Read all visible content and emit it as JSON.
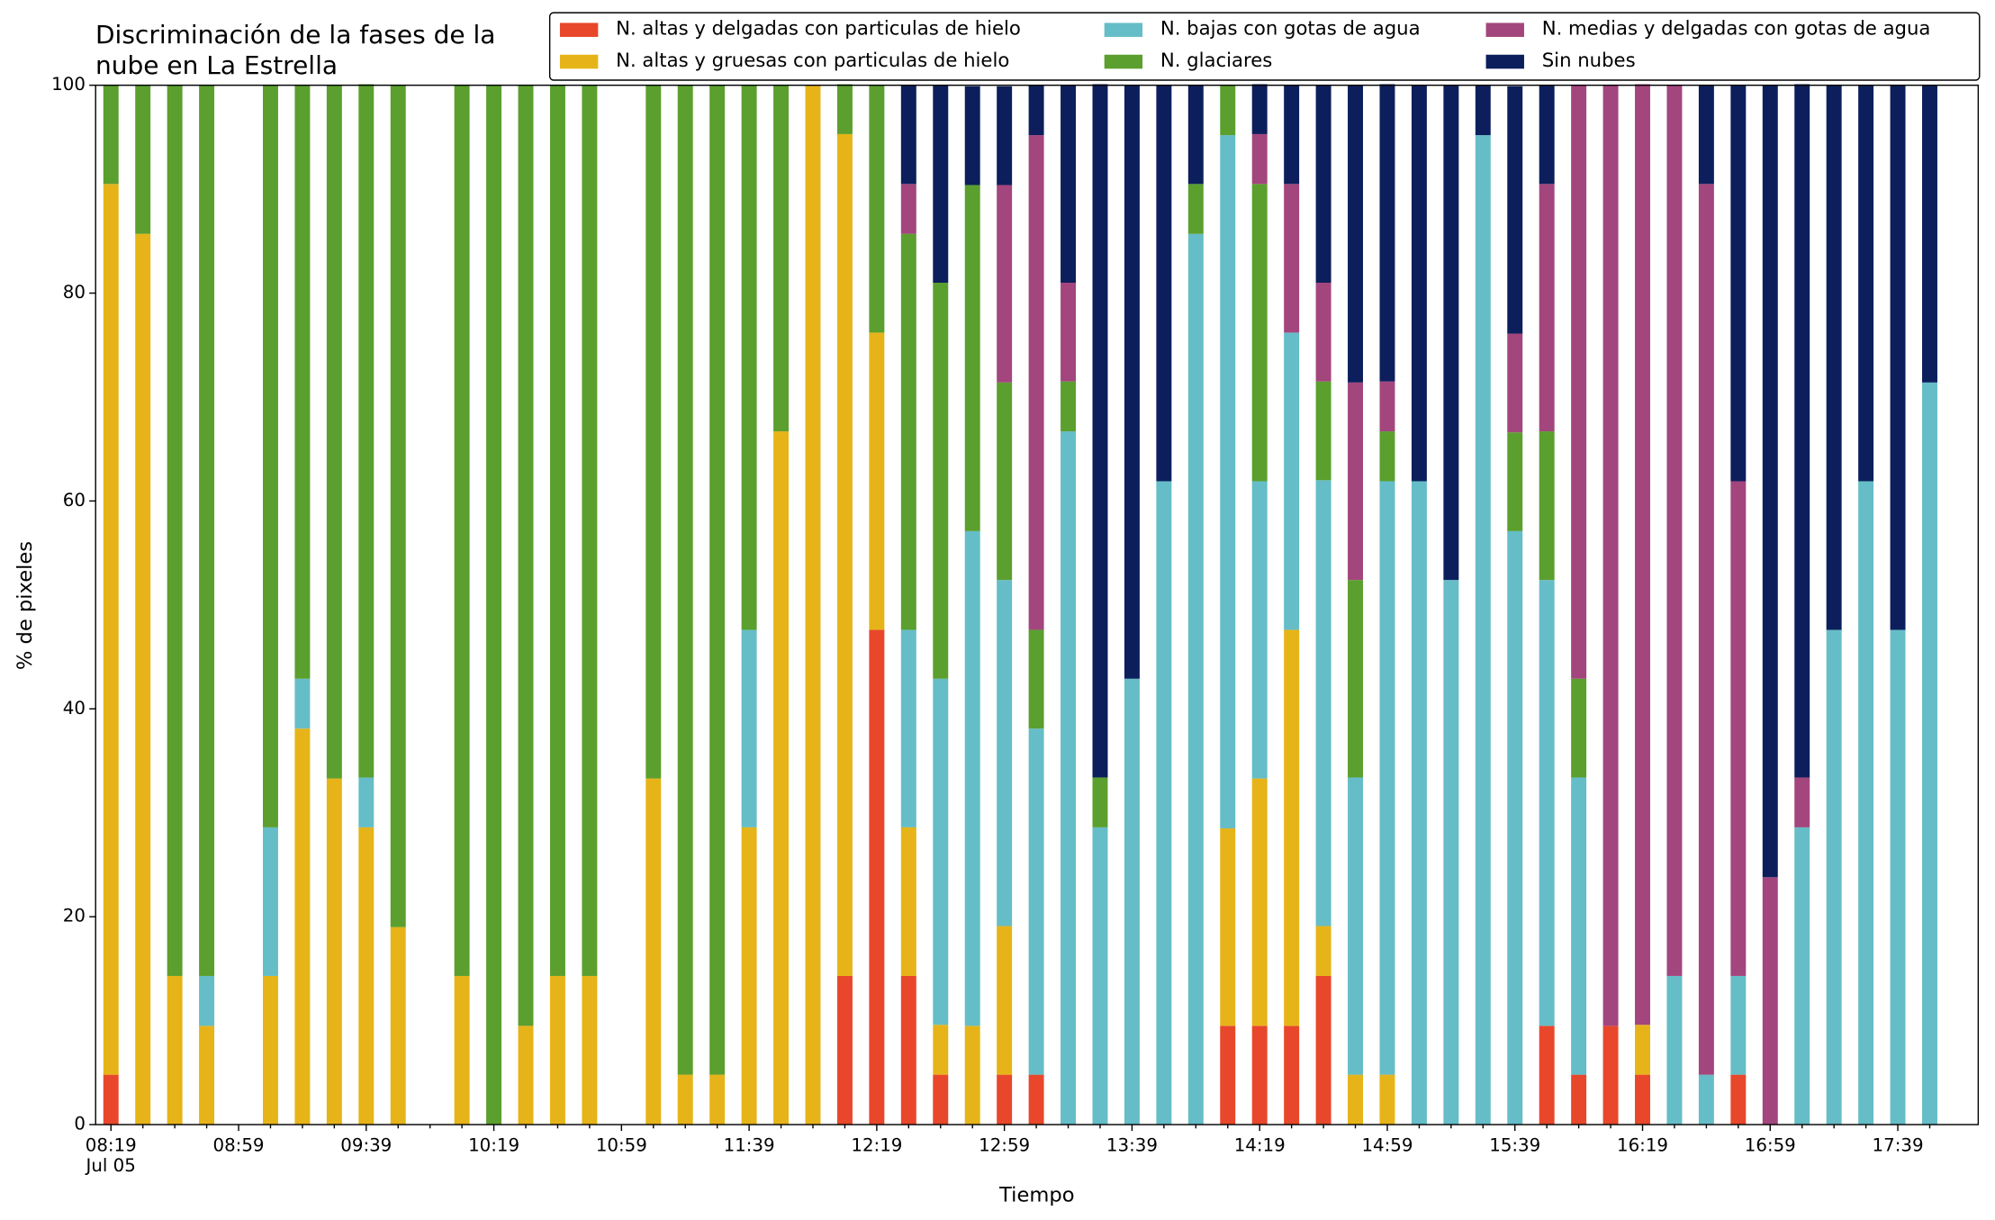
{
  "chart_data": {
    "type": "stacked_bar",
    "title": "Discriminación de la fases de la\nnube en La Estrella",
    "x_label": "Tiempo",
    "y_label": "% de pixeles",
    "x_date_label": "Jul 05",
    "categories": [
      "08:19",
      null,
      null,
      null,
      "08:59",
      null,
      null,
      null,
      "09:39",
      null,
      null,
      null,
      "10:19",
      null,
      null,
      null,
      "10:59",
      null,
      null,
      null,
      "11:39",
      null,
      null,
      null,
      "12:19",
      null,
      null,
      null,
      "12:59",
      null,
      null,
      null,
      "13:39",
      null,
      null,
      null,
      "14:19",
      null,
      null,
      null,
      "14:59",
      null,
      null,
      null,
      "15:39",
      null,
      null,
      null,
      "16:19",
      null,
      null,
      null,
      "16:59",
      null,
      null,
      null,
      "17:39",
      null
    ],
    "ylim": [
      0,
      100
    ],
    "yticks": [
      0,
      20,
      40,
      60,
      80,
      100
    ],
    "series": [
      {
        "name": "N. altas y delgadas con particulas de hielo",
        "color": "#e8472b",
        "values": [
          4.8,
          0,
          0,
          0,
          0,
          0,
          0,
          0,
          0,
          0,
          0,
          0,
          0,
          0,
          0,
          0,
          0,
          0,
          0,
          0,
          0,
          0,
          0,
          14.3,
          47.6,
          14.3,
          4.8,
          0,
          4.8,
          4.8,
          0,
          0,
          0,
          0,
          0,
          9.5,
          9.5,
          9.5,
          14.3,
          0,
          0,
          0,
          0,
          0,
          0,
          9.5,
          4.8,
          9.5,
          4.8,
          0,
          0,
          4.8,
          0,
          0,
          0,
          0,
          0,
          0
        ]
      },
      {
        "name": "N. altas y gruesas con particulas de hielo",
        "color": "#e6b418",
        "values": [
          85.7,
          85.7,
          14.3,
          9.5,
          0,
          14.3,
          38.1,
          33.3,
          28.6,
          19.0,
          0,
          14.3,
          0,
          9.5,
          14.3,
          14.3,
          0,
          33.3,
          4.8,
          4.8,
          28.6,
          66.7,
          100,
          81.0,
          28.6,
          14.3,
          4.8,
          9.5,
          14.3,
          0,
          0,
          0,
          0,
          0,
          0,
          19.0,
          23.8,
          38.1,
          4.8,
          4.8,
          4.8,
          0,
          0,
          0,
          0,
          0,
          0,
          0,
          4.8,
          0,
          0,
          0,
          0,
          0,
          0,
          0,
          0,
          0
        ]
      },
      {
        "name": "N. bajas con gotas de agua",
        "color": "#65bdc7",
        "values": [
          0,
          0,
          0,
          4.8,
          0,
          14.3,
          4.8,
          0,
          4.8,
          0,
          0,
          0,
          0,
          0,
          0,
          0,
          0,
          0,
          0,
          0,
          19.0,
          0,
          0,
          0,
          0,
          19.0,
          33.3,
          47.6,
          33.3,
          33.3,
          66.7,
          28.6,
          42.9,
          61.9,
          85.7,
          66.7,
          28.6,
          28.6,
          42.9,
          28.6,
          57.1,
          61.9,
          52.4,
          95.2,
          57.1,
          42.9,
          28.6,
          0,
          0,
          14.3,
          4.8,
          9.5,
          0,
          28.6,
          47.6,
          61.9,
          47.6,
          71.4
        ]
      },
      {
        "name": "N. glaciares",
        "color": "#5b9f2e",
        "values": [
          9.5,
          14.3,
          85.7,
          85.7,
          0,
          71.4,
          57.1,
          66.7,
          66.7,
          81.0,
          0,
          85.7,
          100,
          90.5,
          85.7,
          85.7,
          0,
          66.7,
          95.2,
          95.2,
          52.4,
          33.3,
          0,
          4.8,
          23.8,
          38.1,
          38.1,
          33.3,
          19.0,
          9.5,
          4.8,
          4.8,
          0,
          0,
          4.8,
          4.8,
          28.6,
          0,
          9.5,
          19.0,
          4.8,
          0,
          0,
          0,
          9.5,
          14.3,
          9.5,
          0,
          0,
          0,
          0,
          0,
          0,
          0,
          0,
          0,
          0,
          0
        ]
      },
      {
        "name": "N. medias y delgadas con gotas de agua",
        "color": "#a3467d",
        "values": [
          0,
          0,
          0,
          0,
          0,
          0,
          0,
          0,
          0,
          0,
          0,
          0,
          0,
          0,
          0,
          0,
          0,
          0,
          0,
          0,
          0,
          0,
          0,
          0,
          0,
          4.8,
          0,
          0,
          19.0,
          47.6,
          9.5,
          0,
          0,
          0,
          0,
          0,
          4.8,
          14.3,
          9.5,
          19.0,
          4.8,
          0,
          0,
          0,
          9.5,
          23.8,
          57.1,
          90.5,
          90.5,
          85.7,
          85.7,
          47.6,
          23.8,
          4.8,
          0,
          0,
          0,
          0
        ]
      },
      {
        "name": "Sin nubes",
        "color": "#0c1f5c",
        "values": [
          0,
          0,
          0,
          0,
          0,
          0,
          0,
          0,
          0,
          0,
          0,
          0,
          0,
          0,
          0,
          0,
          0,
          0,
          0,
          0,
          0,
          0,
          0,
          0,
          0,
          9.5,
          19.0,
          9.5,
          9.5,
          4.8,
          19.0,
          66.7,
          57.1,
          38.1,
          9.5,
          0,
          4.8,
          9.5,
          19.0,
          28.6,
          28.6,
          38.1,
          47.6,
          4.8,
          23.8,
          9.5,
          0,
          0,
          0,
          0,
          9.5,
          38.1,
          76.2,
          66.7,
          52.4,
          38.1,
          52.4,
          28.6
        ]
      }
    ]
  }
}
